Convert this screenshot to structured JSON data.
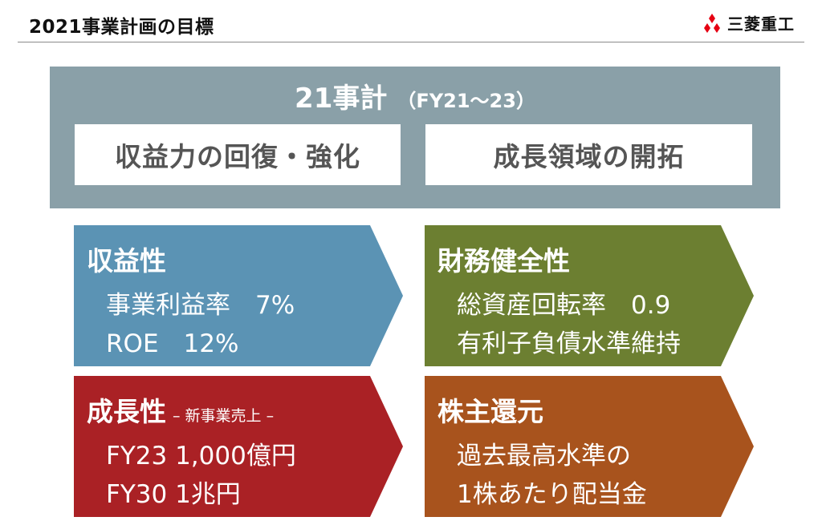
{
  "header": {
    "title": "2021事業計画の目標",
    "logo_text": "三菱重工"
  },
  "plan": {
    "heading_main": "21事計",
    "heading_sub": "（FY21～23）",
    "pillars": [
      "収益力の回復・強化",
      "成長領域の開拓"
    ]
  },
  "targets": {
    "profitability": {
      "title": "収益性",
      "lines": [
        "事業利益率　7%",
        "ROE　12%"
      ]
    },
    "financial_health": {
      "title": "財務健全性",
      "lines": [
        "総資産回転率　0.9",
        "有利子負債水準維持"
      ]
    },
    "growth": {
      "title": "成長性",
      "note": "– 新事業売上 –",
      "lines": [
        "FY23 1,000億円",
        "FY30 1兆円"
      ]
    },
    "shareholder_return": {
      "title": "株主還元",
      "lines": [
        "過去最高水準の",
        "1株あたり配当金"
      ]
    }
  },
  "colors": {
    "plan_panel": "#8aa0a8",
    "profitability": "#5b93b4",
    "financial_health": "#6c7f31",
    "growth": "#aa2125",
    "shareholder_return": "#a8531d",
    "logo_red": "#e60012"
  },
  "icons": {
    "logo": "three-diamonds-icon"
  }
}
